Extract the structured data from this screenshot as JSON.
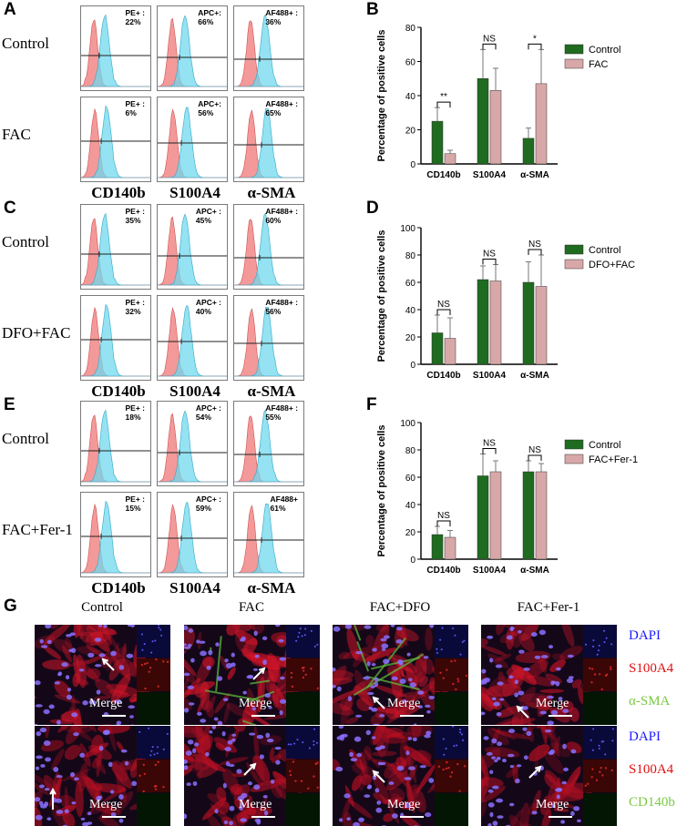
{
  "panels": {
    "A": "A",
    "B": "B",
    "C": "C",
    "D": "D",
    "E": "E",
    "F": "F",
    "G": "G"
  },
  "flow": [
    {
      "rows": [
        {
          "label": "Control",
          "gates": [
            {
              "l1": "PE+ :",
              "l2": "22%"
            },
            {
              "l1": "APC+:",
              "l2": "66%"
            },
            {
              "l1": "AF488+ :",
              "l2": "36%"
            }
          ]
        },
        {
          "label": "FAC",
          "gates": [
            {
              "l1": "PE+ :",
              "l2": "6%"
            },
            {
              "l1": "APC+:",
              "l2": "56%"
            },
            {
              "l1": "AF488+ :",
              "l2": "65%"
            }
          ]
        }
      ],
      "cols": [
        "CD140b",
        "S100A4",
        "α-SMA"
      ]
    },
    {
      "rows": [
        {
          "label": "Control",
          "gates": [
            {
              "l1": "PE+ :",
              "l2": "35%"
            },
            {
              "l1": "APC+ :",
              "l2": "45%"
            },
            {
              "l1": "AF488+ :",
              "l2": "60%"
            }
          ]
        },
        {
          "label": "DFO+FAC",
          "gates": [
            {
              "l1": "PE+ :",
              "l2": "32%"
            },
            {
              "l1": "APC+ :",
              "l2": "40%"
            },
            {
              "l1": "AF488+ :",
              "l2": "56%"
            }
          ]
        }
      ],
      "cols": [
        "CD140b",
        "S100A4",
        "α-SMA"
      ]
    },
    {
      "rows": [
        {
          "label": "Control",
          "gates": [
            {
              "l1": "PE+ :",
              "l2": "18%"
            },
            {
              "l1": "APC+ :",
              "l2": "54%"
            },
            {
              "l1": "AF488+ :",
              "l2": "55%"
            }
          ]
        },
        {
          "label": "FAC+Fer-1",
          "gates": [
            {
              "l1": "PE+ :",
              "l2": "15%"
            },
            {
              "l1": "APC+ :",
              "l2": "59%"
            },
            {
              "l1": "AF488+",
              "l2": "61%"
            }
          ]
        }
      ],
      "cols": [
        "CD140b",
        "S100A4",
        "α-SMA"
      ]
    }
  ],
  "chart_data": [
    {
      "type": "bar",
      "ylabel": "Percentage of positive cells",
      "ylim": [
        0,
        80
      ],
      "yticks": [
        0,
        20,
        40,
        60,
        80
      ],
      "categories": [
        "CD140b",
        "S100A4",
        "α-SMA"
      ],
      "series": [
        {
          "name": "Control",
          "values": [
            25,
            50,
            15
          ],
          "errors": [
            8,
            17,
            6
          ]
        },
        {
          "name": "FAC",
          "values": [
            6,
            43,
            47
          ],
          "errors": [
            2,
            13,
            20
          ]
        }
      ],
      "annotations": [
        "**",
        "NS",
        "*"
      ],
      "colors": [
        "#1f6b1f",
        "#d8a8a8"
      ]
    },
    {
      "type": "bar",
      "ylabel": "Percentage of positive cells",
      "ylim": [
        0,
        100
      ],
      "yticks": [
        0,
        20,
        40,
        60,
        80,
        100
      ],
      "categories": [
        "CD140b",
        "S100A4",
        "α-SMA"
      ],
      "series": [
        {
          "name": "Control",
          "values": [
            23,
            62,
            60
          ],
          "errors": [
            13,
            10,
            15
          ]
        },
        {
          "name": "DFO+FAC",
          "values": [
            19,
            61,
            57
          ],
          "errors": [
            15,
            12,
            23
          ]
        }
      ],
      "annotations": [
        "NS",
        "NS",
        "NS"
      ],
      "colors": [
        "#1f6b1f",
        "#d8a8a8"
      ]
    },
    {
      "type": "bar",
      "ylabel": "Percentage of positive cells",
      "ylim": [
        0,
        100
      ],
      "yticks": [
        0,
        20,
        40,
        60,
        80,
        100
      ],
      "categories": [
        "CD140b",
        "S100A4",
        "α-SMA"
      ],
      "series": [
        {
          "name": "Control",
          "values": [
            18,
            61,
            64
          ],
          "errors": [
            6,
            16,
            8
          ]
        },
        {
          "name": "FAC+Fer-1",
          "values": [
            16,
            64,
            64
          ],
          "errors": [
            5,
            8,
            6
          ]
        }
      ],
      "annotations": [
        "NS",
        "NS",
        "NS"
      ],
      "colors": [
        "#1f6b1f",
        "#d8a8a8"
      ]
    }
  ],
  "micrographs": {
    "columns": [
      "Control",
      "FAC",
      "FAC+DFO",
      "FAC+Fer-1"
    ],
    "merge_label": "Merge",
    "stains_row1": [
      {
        "text": "DAPI",
        "color": "#1a1aff"
      },
      {
        "text": "S100A4",
        "color": "#e01010"
      },
      {
        "text": "α-SMA",
        "color": "#7ac943"
      }
    ],
    "stains_row2": [
      {
        "text": "DAPI",
        "color": "#1a1aff"
      },
      {
        "text": "S100A4",
        "color": "#e01010"
      },
      {
        "text": "CD140b",
        "color": "#7ac943"
      }
    ]
  }
}
